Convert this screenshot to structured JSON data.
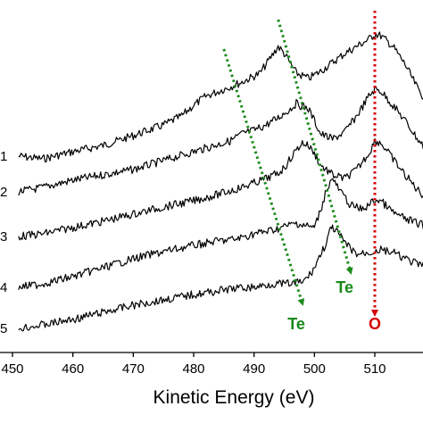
{
  "chart_data": {
    "type": "line",
    "xlabel": "Kinetic Energy (eV)",
    "ylabel": "",
    "xlim": [
      450,
      522
    ],
    "x_ticks": [
      450,
      460,
      470,
      480,
      490,
      500,
      510
    ],
    "x_tick_labels": [
      "450",
      "460",
      "470",
      "480",
      "490",
      "500",
      "510"
    ],
    "y_axis_visible": false,
    "grid": false,
    "series": [
      {
        "name": "1",
        "color": "#000000",
        "points": [
          [
            451,
            175
          ],
          [
            455,
            178
          ],
          [
            460,
            170
          ],
          [
            465,
            163
          ],
          [
            470,
            152
          ],
          [
            475,
            140
          ],
          [
            478,
            130
          ],
          [
            480,
            118
          ],
          [
            482,
            108
          ],
          [
            485,
            100
          ],
          [
            488,
            92
          ],
          [
            491,
            82
          ],
          [
            493,
            62
          ],
          [
            494,
            52
          ],
          [
            495,
            60
          ],
          [
            497,
            82
          ],
          [
            499,
            88
          ],
          [
            501,
            80
          ],
          [
            503,
            70
          ],
          [
            505,
            60
          ],
          [
            507,
            52
          ],
          [
            509,
            44
          ],
          [
            510,
            38
          ],
          [
            511,
            40
          ],
          [
            513,
            52
          ],
          [
            515,
            72
          ],
          [
            517,
            98
          ],
          [
            519,
            118
          ],
          [
            521,
            130
          ]
        ]
      },
      {
        "name": "2",
        "color": "#000000",
        "points": [
          [
            451,
            215
          ],
          [
            455,
            210
          ],
          [
            460,
            202
          ],
          [
            465,
            196
          ],
          [
            470,
            190
          ],
          [
            475,
            180
          ],
          [
            480,
            170
          ],
          [
            484,
            162
          ],
          [
            486,
            158
          ],
          [
            488,
            150
          ],
          [
            490,
            146
          ],
          [
            492,
            140
          ],
          [
            494,
            132
          ],
          [
            496,
            122
          ],
          [
            497,
            116
          ],
          [
            499,
            122
          ],
          [
            500,
            135
          ],
          [
            501,
            150
          ],
          [
            503,
            156
          ],
          [
            505,
            148
          ],
          [
            507,
            130
          ],
          [
            509,
            108
          ],
          [
            510,
            100
          ],
          [
            511,
            102
          ],
          [
            513,
            118
          ],
          [
            515,
            135
          ],
          [
            517,
            155
          ],
          [
            519,
            172
          ],
          [
            521,
            182
          ]
        ]
      },
      {
        "name": "3",
        "color": "#000000",
        "points": [
          [
            451,
            265
          ],
          [
            455,
            262
          ],
          [
            460,
            255
          ],
          [
            465,
            248
          ],
          [
            470,
            240
          ],
          [
            475,
            232
          ],
          [
            480,
            225
          ],
          [
            484,
            218
          ],
          [
            488,
            210
          ],
          [
            490,
            205
          ],
          [
            492,
            200
          ],
          [
            494,
            194
          ],
          [
            495,
            188
          ],
          [
            496,
            178
          ],
          [
            497,
            168
          ],
          [
            498,
            160
          ],
          [
            499,
            163
          ],
          [
            500,
            172
          ],
          [
            501,
            185
          ],
          [
            503,
            196
          ],
          [
            505,
            200
          ],
          [
            507,
            190
          ],
          [
            509,
            172
          ],
          [
            510,
            158
          ],
          [
            511,
            160
          ],
          [
            513,
            178
          ],
          [
            515,
            196
          ],
          [
            517,
            212
          ],
          [
            519,
            225
          ],
          [
            521,
            232
          ]
        ]
      },
      {
        "name": "4",
        "color": "#000000",
        "points": [
          [
            451,
            322
          ],
          [
            455,
            318
          ],
          [
            460,
            310
          ],
          [
            465,
            300
          ],
          [
            470,
            290
          ],
          [
            475,
            282
          ],
          [
            480,
            275
          ],
          [
            484,
            270
          ],
          [
            487,
            268
          ],
          [
            490,
            262
          ],
          [
            493,
            258
          ],
          [
            495,
            254
          ],
          [
            497,
            250
          ],
          [
            498,
            252
          ],
          [
            500,
            255
          ],
          [
            501,
            236
          ],
          [
            502,
            212
          ],
          [
            503,
            200
          ],
          [
            504,
            212
          ],
          [
            506,
            230
          ],
          [
            508,
            235
          ],
          [
            510,
            224
          ],
          [
            511,
            225
          ],
          [
            513,
            238
          ],
          [
            515,
            245
          ],
          [
            517,
            250
          ],
          [
            519,
            254
          ],
          [
            521,
            257
          ]
        ]
      },
      {
        "name": "5",
        "color": "#000000",
        "points": [
          [
            451,
            368
          ],
          [
            455,
            364
          ],
          [
            460,
            358
          ],
          [
            465,
            350
          ],
          [
            470,
            342
          ],
          [
            475,
            336
          ],
          [
            480,
            330
          ],
          [
            484,
            326
          ],
          [
            487,
            323
          ],
          [
            490,
            322
          ],
          [
            493,
            318
          ],
          [
            496,
            318
          ],
          [
            498,
            316
          ],
          [
            499,
            310
          ],
          [
            500,
            300
          ],
          [
            501,
            285
          ],
          [
            502,
            272
          ],
          [
            502.5,
            260
          ],
          [
            503,
            255
          ],
          [
            504,
            262
          ],
          [
            505,
            272
          ],
          [
            507,
            285
          ],
          [
            509,
            283
          ],
          [
            511,
            280
          ],
          [
            513,
            283
          ],
          [
            515,
            290
          ],
          [
            517,
            296
          ],
          [
            519,
            300
          ],
          [
            521,
            302
          ]
        ]
      }
    ],
    "annotations": [
      {
        "label": "Te",
        "color": "#1a8a1a",
        "from": [
          485,
          55
        ],
        "to": [
          498,
          340
        ],
        "label_at": [
          497,
          364
        ]
      },
      {
        "label": "Te",
        "color": "#1a8a1a",
        "from": [
          494,
          22
        ],
        "to": [
          506,
          305
        ],
        "label_at": [
          505,
          323
        ]
      },
      {
        "label": "O",
        "color": "#d40000",
        "from": [
          510,
          12
        ],
        "to": [
          510,
          352
        ],
        "label_at": [
          510,
          364
        ]
      }
    ]
  }
}
